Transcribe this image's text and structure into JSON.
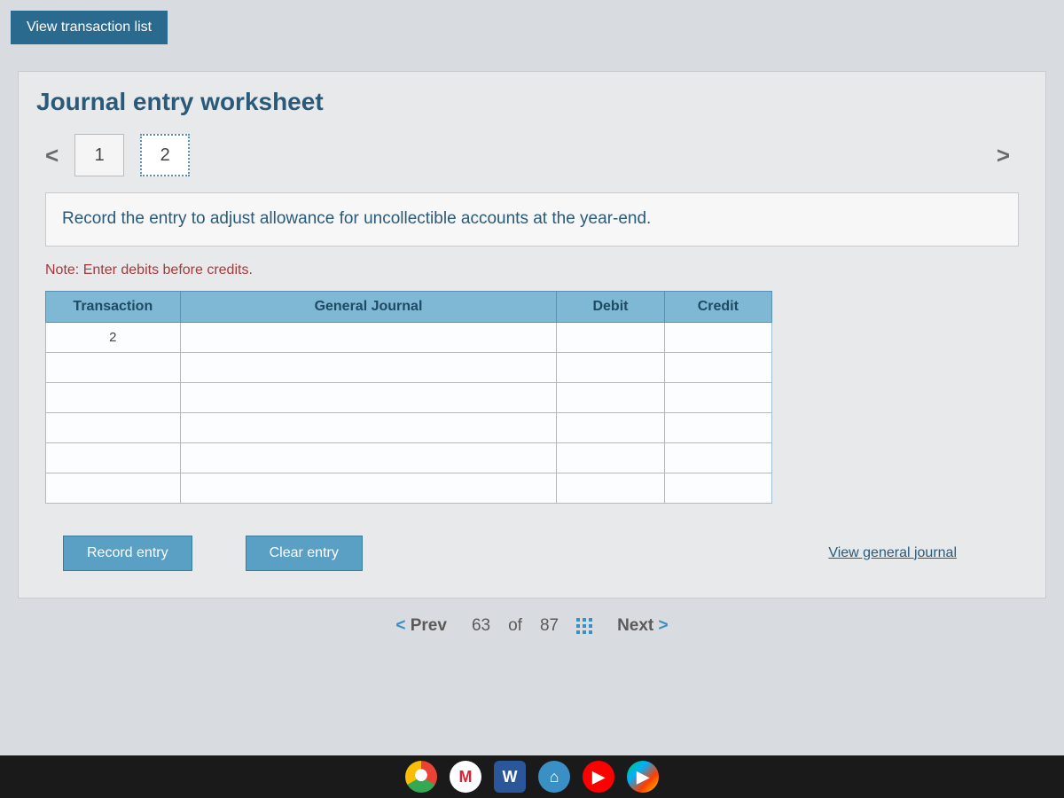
{
  "header": {
    "view_transaction_list": "View transaction list"
  },
  "worksheet": {
    "title": "Journal entry worksheet",
    "pager": {
      "prev_glyph": "<",
      "next_glyph": ">",
      "pages": [
        "1",
        "2"
      ],
      "active_index": 1
    },
    "instruction": "Record the entry to adjust allowance for uncollectible accounts at the year-end.",
    "note": "Note: Enter debits before credits.",
    "table": {
      "columns": [
        "Transaction",
        "General Journal",
        "Debit",
        "Credit"
      ],
      "rows": [
        [
          "2",
          "",
          "",
          ""
        ],
        [
          "",
          "",
          "",
          ""
        ],
        [
          "",
          "",
          "",
          ""
        ],
        [
          "",
          "",
          "",
          ""
        ],
        [
          "",
          "",
          "",
          ""
        ],
        [
          "",
          "",
          "",
          ""
        ]
      ],
      "header_bg": "#7fb8d4",
      "header_fg": "#1e4a63",
      "cell_border": "#9fbfd4"
    },
    "actions": {
      "record": "Record entry",
      "clear": "Clear entry",
      "view_journal": "View general journal"
    }
  },
  "bottom_nav": {
    "prev_label": "Prev",
    "next_label": "Next",
    "position_current": "63",
    "position_sep": "of",
    "position_total": "87"
  },
  "taskbar": {
    "icons": [
      "chrome",
      "gmail",
      "word",
      "files",
      "youtube",
      "play"
    ]
  },
  "colors": {
    "page_bg": "#d8dce0",
    "panel_bg": "#e8e9eb",
    "accent": "#2a5a7a",
    "button_bg": "#5a9fc4",
    "header_btn_bg": "#2b6a8f",
    "note_color": "#a33a3a"
  }
}
